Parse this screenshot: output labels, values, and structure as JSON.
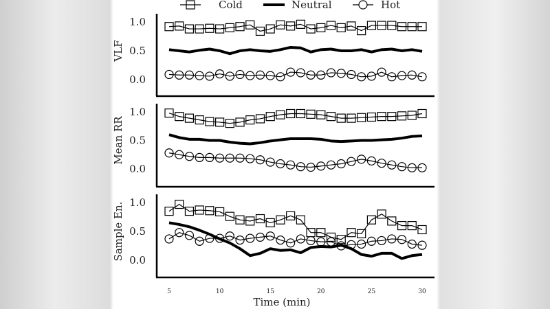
{
  "chart_data": [
    {
      "type": "line",
      "ylabel": "VLF",
      "x": [
        5,
        6,
        7,
        8,
        9,
        10,
        11,
        12,
        13,
        14,
        15,
        16,
        17,
        18,
        19,
        20,
        21,
        22,
        23,
        24,
        25,
        26,
        27,
        28,
        29,
        30
      ],
      "yticks": [
        "0.0",
        "0.5",
        "1.0"
      ],
      "ylim": [
        -0.25,
        1.05
      ],
      "series": [
        {
          "name": "Cold",
          "marker": "square",
          "values": [
            0.92,
            0.93,
            0.88,
            0.88,
            0.89,
            0.88,
            0.9,
            0.92,
            0.95,
            0.84,
            0.88,
            0.95,
            0.93,
            0.96,
            0.88,
            0.9,
            0.94,
            0.9,
            0.93,
            0.85,
            0.94,
            0.94,
            0.94,
            0.92,
            0.92,
            0.92
          ]
        },
        {
          "name": "Neutral",
          "marker": "none",
          "values": [
            0.52,
            0.5,
            0.48,
            0.51,
            0.53,
            0.5,
            0.45,
            0.5,
            0.52,
            0.5,
            0.49,
            0.52,
            0.56,
            0.55,
            0.48,
            0.52,
            0.53,
            0.5,
            0.5,
            0.52,
            0.48,
            0.52,
            0.53,
            0.5,
            0.52,
            0.49
          ]
        },
        {
          "name": "Hot",
          "marker": "circle",
          "values": [
            0.09,
            0.08,
            0.08,
            0.07,
            0.06,
            0.1,
            0.06,
            0.09,
            0.07,
            0.08,
            0.07,
            0.05,
            0.13,
            0.12,
            0.08,
            0.08,
            0.12,
            0.11,
            0.09,
            0.05,
            0.06,
            0.13,
            0.05,
            0.07,
            0.08,
            0.05
          ]
        }
      ]
    },
    {
      "type": "line",
      "ylabel": "Mean RR",
      "x": [
        5,
        6,
        7,
        8,
        9,
        10,
        11,
        12,
        13,
        14,
        15,
        16,
        17,
        18,
        19,
        20,
        21,
        22,
        23,
        24,
        25,
        26,
        27,
        28,
        29,
        30
      ],
      "yticks": [
        "0.0",
        "0.5",
        "1.0"
      ],
      "ylim": [
        -0.25,
        1.05
      ],
      "series": [
        {
          "name": "Cold",
          "marker": "square",
          "values": [
            0.98,
            0.92,
            0.89,
            0.86,
            0.83,
            0.82,
            0.8,
            0.82,
            0.86,
            0.88,
            0.92,
            0.95,
            0.97,
            0.97,
            0.96,
            0.95,
            0.92,
            0.89,
            0.89,
            0.9,
            0.91,
            0.92,
            0.92,
            0.93,
            0.94,
            0.97
          ]
        },
        {
          "name": "Neutral",
          "marker": "none",
          "values": [
            0.6,
            0.55,
            0.52,
            0.52,
            0.5,
            0.5,
            0.47,
            0.45,
            0.44,
            0.46,
            0.49,
            0.51,
            0.53,
            0.53,
            0.53,
            0.52,
            0.49,
            0.48,
            0.49,
            0.5,
            0.5,
            0.51,
            0.52,
            0.54,
            0.57,
            0.58
          ]
        },
        {
          "name": "Hot",
          "marker": "circle",
          "values": [
            0.28,
            0.25,
            0.22,
            0.2,
            0.2,
            0.19,
            0.19,
            0.19,
            0.18,
            0.16,
            0.12,
            0.09,
            0.07,
            0.04,
            0.03,
            0.05,
            0.07,
            0.09,
            0.13,
            0.17,
            0.14,
            0.1,
            0.07,
            0.04,
            0.02,
            0.02
          ]
        }
      ]
    },
    {
      "type": "line",
      "ylabel": "Sample En.",
      "xlabel": "Time (min)",
      "xticks": [
        "5",
        "10",
        "15",
        "20",
        "25",
        "30"
      ],
      "x": [
        5,
        6,
        7,
        8,
        9,
        10,
        11,
        12,
        13,
        14,
        15,
        16,
        17,
        18,
        19,
        20,
        21,
        22,
        23,
        24,
        25,
        26,
        27,
        28,
        29,
        30
      ],
      "yticks": [
        "0.0",
        "0.5",
        "1.0"
      ],
      "ylim": [
        -0.25,
        1.05
      ],
      "series": [
        {
          "name": "Cold",
          "marker": "square",
          "values": [
            0.85,
            0.97,
            0.85,
            0.87,
            0.86,
            0.84,
            0.76,
            0.7,
            0.68,
            0.72,
            0.65,
            0.7,
            0.77,
            0.7,
            0.48,
            0.48,
            0.4,
            0.36,
            0.48,
            0.46,
            0.7,
            0.8,
            0.68,
            0.6,
            0.6,
            0.53
          ]
        },
        {
          "name": "Neutral",
          "marker": "none",
          "values": [
            0.65,
            0.62,
            0.58,
            0.52,
            0.45,
            0.37,
            0.3,
            0.2,
            0.08,
            0.12,
            0.2,
            0.17,
            0.18,
            0.13,
            0.22,
            0.24,
            0.23,
            0.26,
            0.2,
            0.1,
            0.07,
            0.12,
            0.12,
            0.03,
            0.08,
            0.1
          ]
        },
        {
          "name": "Hot",
          "marker": "circle",
          "values": [
            0.37,
            0.48,
            0.43,
            0.33,
            0.38,
            0.38,
            0.42,
            0.35,
            0.38,
            0.4,
            0.42,
            0.35,
            0.3,
            0.37,
            0.34,
            0.32,
            0.32,
            0.25,
            0.27,
            0.28,
            0.33,
            0.34,
            0.37,
            0.36,
            0.28,
            0.26
          ]
        }
      ]
    }
  ],
  "legend": {
    "placement": "top-center",
    "items": [
      "Cold",
      "Neutral",
      "Hot"
    ]
  },
  "colors": {
    "line": "#000000",
    "background": "#ffffff"
  }
}
